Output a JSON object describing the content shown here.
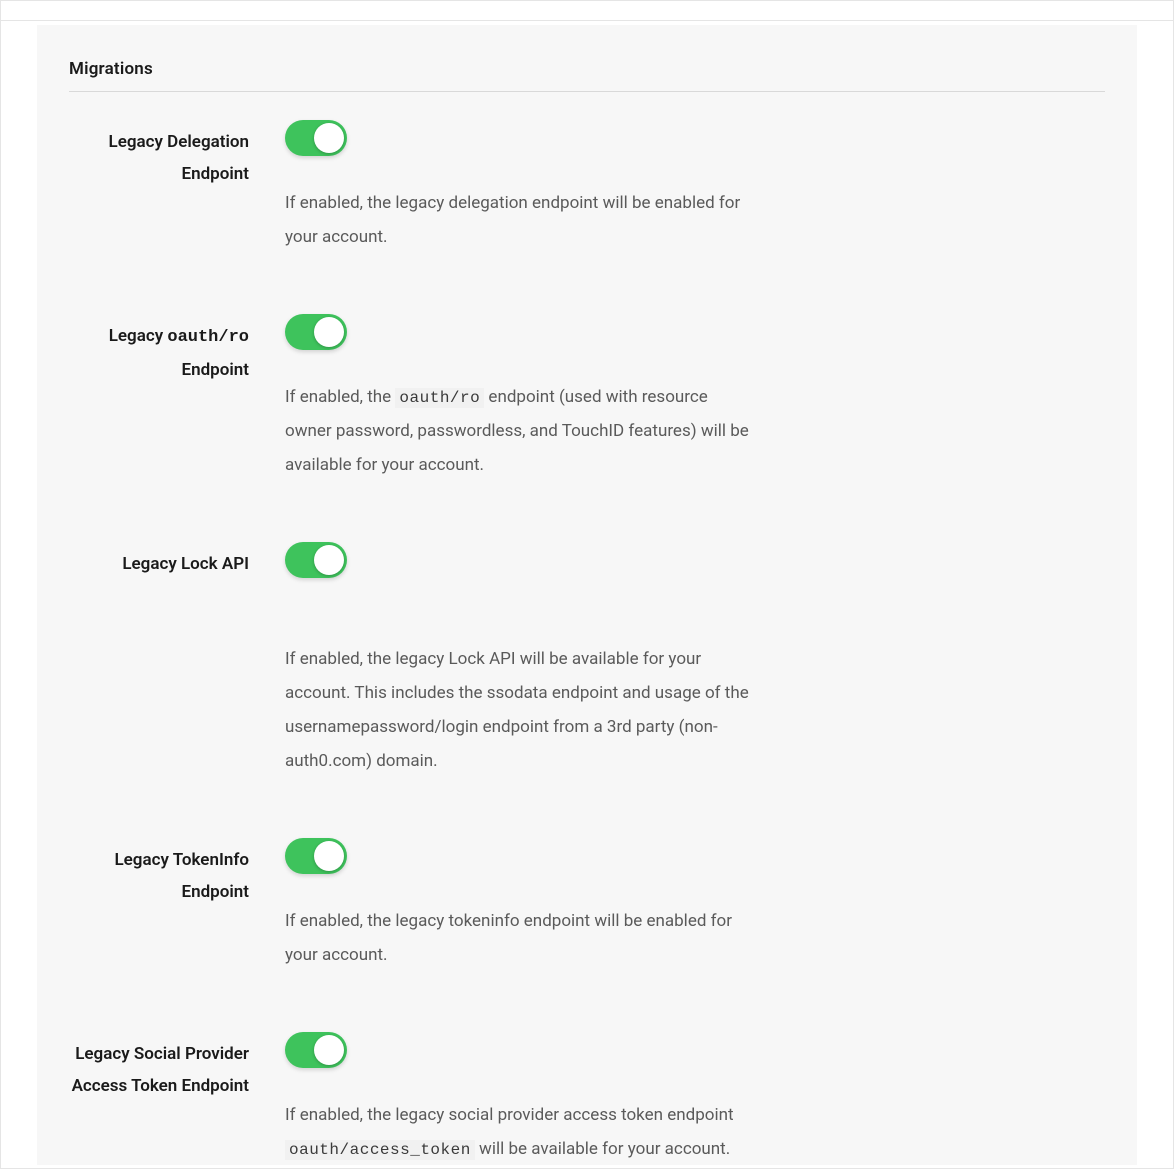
{
  "section_title": "Migrations",
  "colors": {
    "toggle_on": "#3ec35c",
    "panel_bg": "#f7f7f7",
    "border": "#e5e5e5",
    "divider": "#d9d9d9",
    "text": "#1a1a1a",
    "desc_text": "#5a5a5a"
  },
  "items": [
    {
      "id": "legacy-delegation",
      "label_html": "Legacy Delegation Endpoint",
      "enabled": true,
      "desc_html": "If enabled, the legacy delegation endpoint will be enabled for your account."
    },
    {
      "id": "legacy-oauth-ro",
      "label_html": "Legacy <code>oauth/ro</code> Endpoint",
      "enabled": true,
      "desc_html": "If enabled, the <code>oauth/ro</code> endpoint (used with resource owner password, passwordless, and TouchID features) will be available for your account."
    },
    {
      "id": "legacy-lock-api",
      "label_html": "Legacy Lock API",
      "enabled": true,
      "extra_class": "lock-api",
      "desc_html": "If enabled, the legacy Lock API will be available for your account. This includes the ssodata endpoint and usage of the usernamepassword/login endpoint from a 3rd party (non-auth0.com) domain."
    },
    {
      "id": "legacy-tokeninfo",
      "label_html": "Legacy TokenInfo Endpoint",
      "enabled": true,
      "desc_html": "If enabled, the legacy tokeninfo endpoint will be enabled for your account."
    },
    {
      "id": "legacy-social-access-token",
      "label_html": "Legacy Social Provider Access Token Endpoint",
      "enabled": true,
      "desc_html": "If enabled, the legacy social provider access token endpoint <code>oauth/access_token</code> will be available for your account."
    }
  ]
}
